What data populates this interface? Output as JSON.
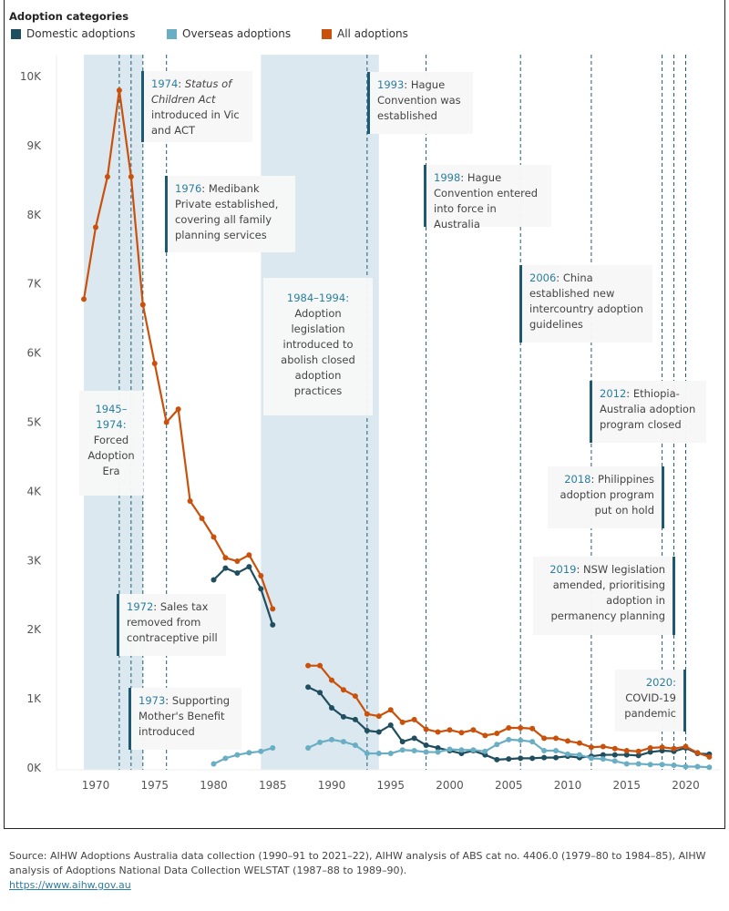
{
  "chart_data": {
    "type": "line",
    "legend_title": "Adoption categories",
    "legend_placement": "top",
    "ylim": [
      0,
      10000
    ],
    "yticks": [
      0,
      1000,
      2000,
      3000,
      4000,
      5000,
      6000,
      7000,
      8000,
      9000,
      10000
    ],
    "ytick_labels": [
      "0K",
      "1K",
      "2K",
      "3K",
      "4K",
      "5K",
      "6K",
      "7K",
      "8K",
      "9K",
      "10K"
    ],
    "xlim": [
      1968,
      2023
    ],
    "xticks": [
      1970,
      1975,
      1980,
      1985,
      1990,
      1995,
      2000,
      2005,
      2010,
      2015,
      2020
    ],
    "xtick_labels": [
      "1970",
      "1975",
      "1980",
      "1985",
      "1990",
      "1995",
      "2000",
      "2005",
      "2010",
      "2015",
      "2020"
    ],
    "grid": false,
    "series": [
      {
        "name": "Domestic adoptions",
        "color": "#1f4e5f",
        "x": [
          1980,
          1981,
          1982,
          1983,
          1984,
          1985,
          1988,
          1989,
          1990,
          1991,
          1992,
          1993,
          1994,
          1995,
          1996,
          1997,
          1998,
          1999,
          2000,
          2001,
          2002,
          2003,
          2004,
          2005,
          2006,
          2007,
          2008,
          2009,
          2010,
          2011,
          2012,
          2013,
          2014,
          2015,
          2016,
          2017,
          2018,
          2019,
          2020,
          2021,
          2022
        ],
        "y": [
          2720,
          2890,
          2820,
          2910,
          2590,
          2070,
          1170,
          1090,
          870,
          740,
          700,
          540,
          520,
          620,
          380,
          430,
          330,
          290,
          250,
          210,
          250,
          190,
          120,
          130,
          140,
          140,
          150,
          150,
          170,
          150,
          170,
          190,
          190,
          190,
          180,
          230,
          250,
          240,
          290,
          210,
          200
        ]
      },
      {
        "name": "Overseas adoptions",
        "color": "#6aaec4",
        "x": [
          1980,
          1981,
          1982,
          1983,
          1984,
          1985,
          1988,
          1989,
          1990,
          1991,
          1992,
          1993,
          1994,
          1995,
          1996,
          1997,
          1998,
          1999,
          2000,
          2001,
          2002,
          2003,
          2004,
          2005,
          2006,
          2007,
          2008,
          2009,
          2010,
          2011,
          2012,
          2013,
          2014,
          2015,
          2016,
          2017,
          2018,
          2019,
          2020,
          2021,
          2022
        ],
        "y": [
          60,
          140,
          190,
          220,
          240,
          290,
          290,
          370,
          410,
          380,
          330,
          210,
          210,
          210,
          260,
          250,
          230,
          230,
          270,
          260,
          260,
          240,
          340,
          410,
          400,
          380,
          250,
          250,
          200,
          190,
          140,
          130,
          100,
          60,
          60,
          50,
          50,
          40,
          20,
          20,
          10
        ]
      },
      {
        "name": "All adoptions",
        "color": "#c9510c",
        "x": [
          1969,
          1970,
          1971,
          1972,
          1973,
          1974,
          1975,
          1976,
          1977,
          1978,
          1979,
          1980,
          1981,
          1982,
          1983,
          1984,
          1985,
          1988,
          1989,
          1990,
          1991,
          1992,
          1993,
          1994,
          1995,
          1996,
          1997,
          1998,
          1999,
          2000,
          2001,
          2002,
          2003,
          2004,
          2005,
          2006,
          2007,
          2008,
          2009,
          2010,
          2011,
          2012,
          2013,
          2014,
          2015,
          2016,
          2017,
          2018,
          2019,
          2020,
          2021,
          2022
        ],
        "y": [
          6780,
          7820,
          8550,
          9800,
          8550,
          6700,
          5850,
          5000,
          5190,
          3860,
          3610,
          3340,
          3040,
          2990,
          3080,
          2780,
          2300,
          1480,
          1480,
          1270,
          1130,
          1040,
          780,
          750,
          840,
          660,
          700,
          560,
          520,
          550,
          510,
          550,
          470,
          500,
          580,
          580,
          570,
          430,
          430,
          390,
          360,
          300,
          310,
          280,
          250,
          240,
          290,
          300,
          280,
          310,
          220,
          160
        ]
      }
    ],
    "shaded_periods": [
      [
        1969,
        1974
      ],
      [
        1984,
        1994
      ]
    ],
    "event_lines": [
      1972,
      1973,
      1974,
      1976,
      1993,
      1998,
      2006,
      2012,
      2018,
      2019,
      2020
    ],
    "annotations": {
      "a1974": {
        "year": "1974",
        "sep": ": ",
        "italic": "Status of Children Act",
        "text": " introduced in Vic and ACT"
      },
      "a1976": {
        "year": "1976",
        "sep": ": ",
        "text": "Medibank Private established, covering all family planning services"
      },
      "a1984": {
        "year": "1984–1994:",
        "text": "Adoption legislation introduced to abolish closed adoption practices"
      },
      "a1945": {
        "year": "1945–1974:",
        "text": "Forced Adoption Era"
      },
      "a1972": {
        "year": "1972",
        "sep": ": ",
        "text": "Sales tax removed from contraceptive pill"
      },
      "a1973": {
        "year": "1973",
        "sep": ": ",
        "text": "Supporting Mother's Benefit introduced"
      },
      "a1993": {
        "year": "1993",
        "sep": ": ",
        "text": "Hague Convention was established"
      },
      "a1998": {
        "year": "1998",
        "sep": ": ",
        "text": "Hague Convention entered into force in Australia"
      },
      "a2006": {
        "year": "2006",
        "sep": ": ",
        "text": "China established new intercountry adoption guidelines"
      },
      "a2012": {
        "year": "2012",
        "sep": ": ",
        "text": "Ethiopia-Australia adoption program closed"
      },
      "a2018": {
        "year": "2018",
        "sep": ": ",
        "text": "Philippines adoption program put on hold"
      },
      "a2019": {
        "year": "2019",
        "sep": ": ",
        "text": "NSW legislation amended, prioritising adoption in permanency planning"
      },
      "a2020": {
        "year": "2020:",
        "text": "COVID-19 pandemic"
      }
    }
  },
  "footer": {
    "source": "Source: AIHW Adoptions Australia data collection (1990–91 to 2021–22), AIHW analysis of ABS cat no. 4406.0 (1979–80 to 1984–85), AIHW analysis of Adoptions National Data Collection WELSTAT (1987–88 to 1989–90).",
    "link": "https://www.aihw.gov.au"
  }
}
